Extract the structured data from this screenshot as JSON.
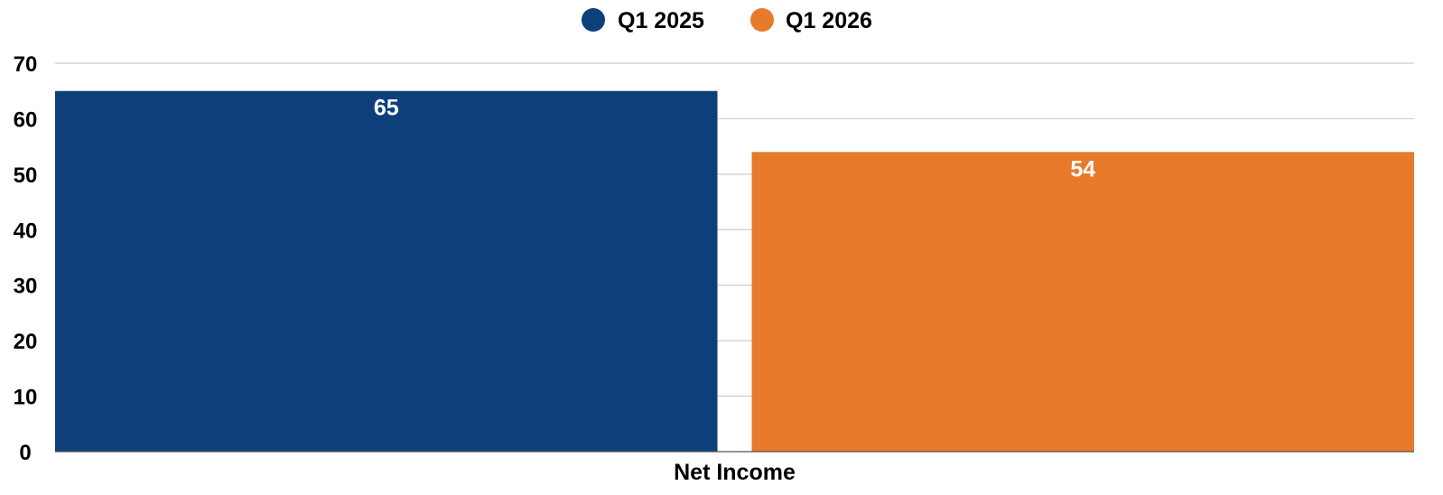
{
  "chart_data": {
    "type": "bar",
    "title": "",
    "xlabel": "",
    "ylabel": "",
    "categories": [
      "Net Income"
    ],
    "series": [
      {
        "name": "Q1 2025",
        "values": [
          65
        ],
        "color": "#0d3f7a"
      },
      {
        "name": "Q1 2026",
        "values": [
          54
        ],
        "color": "#e77a2b"
      }
    ],
    "ylim": [
      0,
      70
    ],
    "yticks": [
      0,
      10,
      20,
      30,
      40,
      50,
      60,
      70
    ],
    "grid": true,
    "legend": "top-center",
    "data_labels": true
  }
}
